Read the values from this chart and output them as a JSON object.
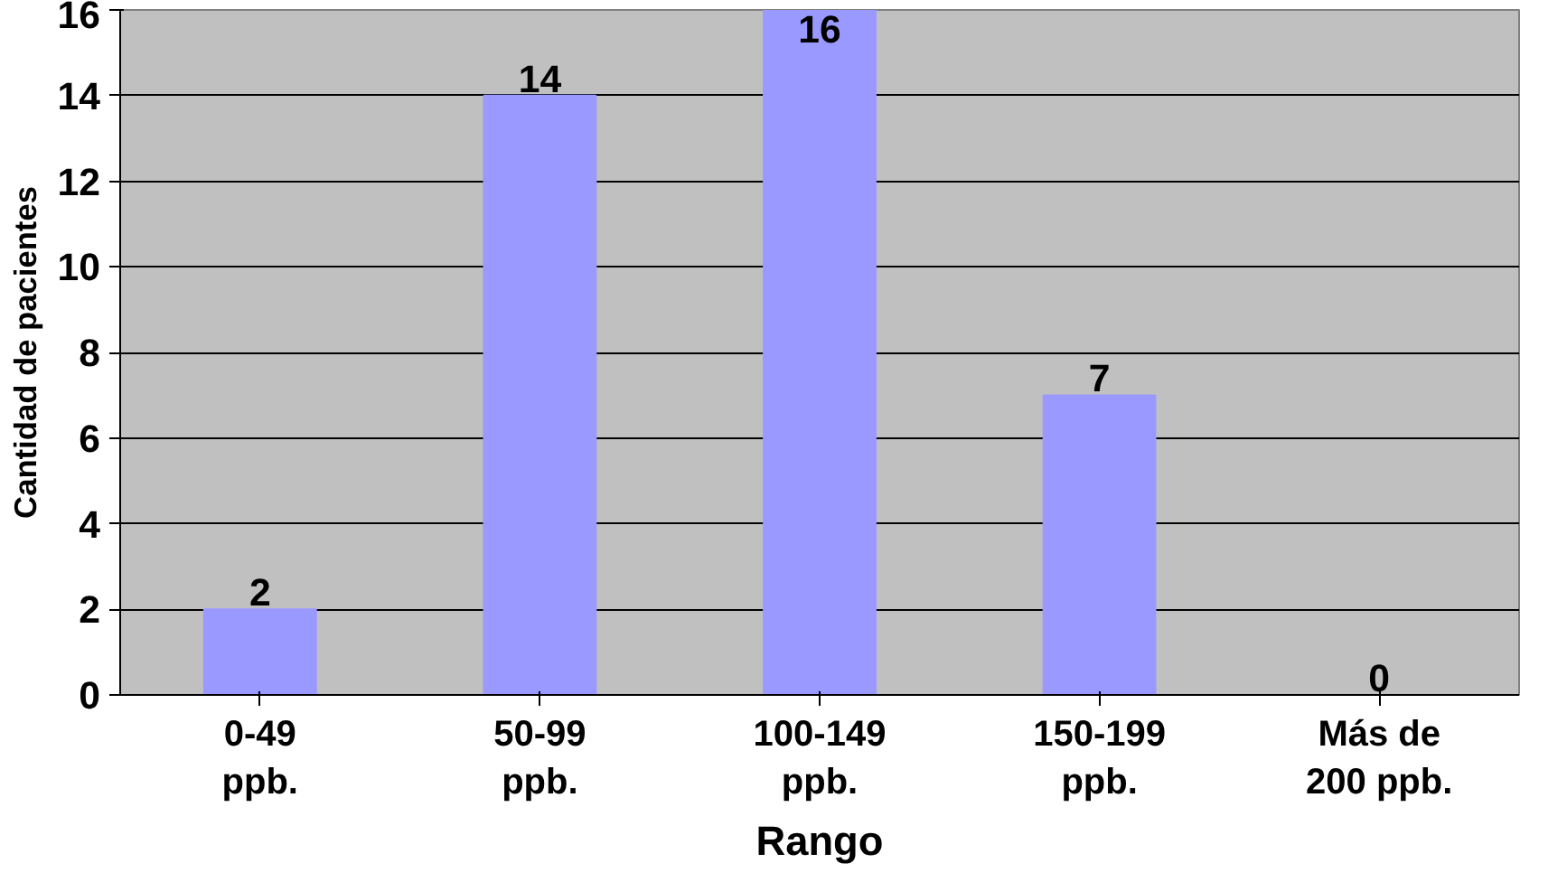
{
  "chart_data": {
    "type": "bar",
    "xlabel": "Rango",
    "ylabel": "Cantidad de pacientes",
    "categories": [
      "0-49\nppb.",
      "50-99\nppb.",
      "100-149\nppb.",
      "150-199\nppb.",
      "Más de\n200 ppb."
    ],
    "values": [
      2,
      14,
      16,
      7,
      0
    ],
    "color": "#9999ff",
    "ylim": [
      0,
      16
    ],
    "yticks": [
      0,
      2,
      4,
      6,
      8,
      10,
      12,
      14,
      16
    ],
    "grid": "y",
    "data_labels": true
  }
}
